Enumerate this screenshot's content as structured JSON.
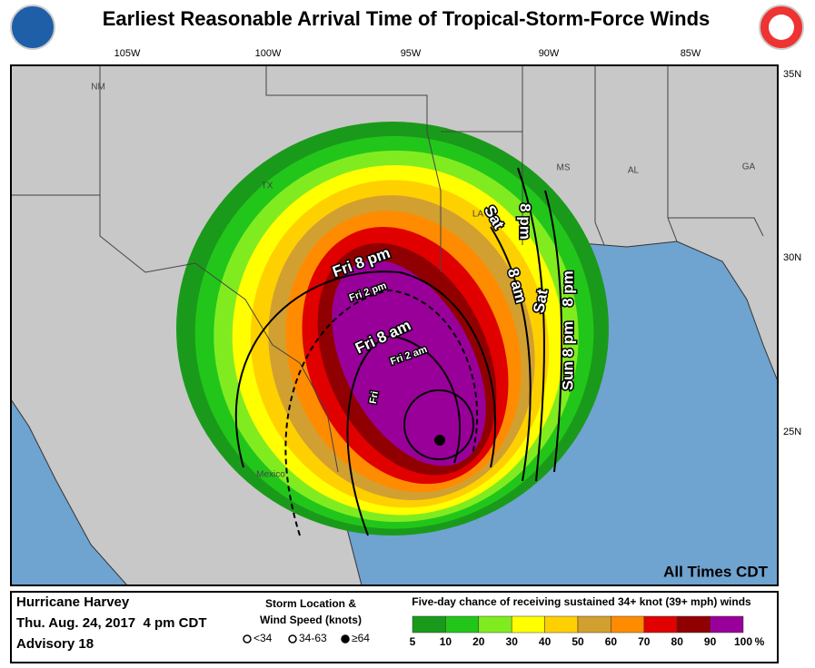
{
  "header": {
    "title": "Earliest Reasonable Arrival Time of Tropical-Storm-Force Winds"
  },
  "map": {
    "lon_labels": [
      "105W",
      "100W",
      "95W",
      "90W",
      "85W"
    ],
    "lat_labels": [
      "35N",
      "30N",
      "25N"
    ],
    "region_labels": [
      "NM",
      "TX",
      "LA",
      "MS",
      "AL",
      "GA",
      "Mexico"
    ],
    "time_labels": [
      "Fri 8 pm",
      "Fri 2 pm",
      "Fri 8 am",
      "Fri 2 am",
      "Fri",
      "Sat",
      "8 pm",
      "8 am",
      "Sat",
      "8 pm",
      "Sun 8 pm"
    ],
    "note": "All Times CDT"
  },
  "footer": {
    "storm_name": "Hurricane Harvey",
    "issued": "Thu. Aug. 24, 2017  4 pm CDT",
    "advisory": "Advisory 18",
    "storm_legend_title": "Storm Location &",
    "storm_legend_subtitle": "Wind Speed (knots)",
    "storm_legend_items": [
      "<34",
      "34-63",
      "≥64"
    ],
    "scale_title": "Five-day chance of receiving sustained 34+ knot (39+ mph) winds",
    "scale_ticks": [
      5,
      10,
      20,
      30,
      40,
      50,
      60,
      70,
      80,
      90,
      100
    ],
    "scale_unit": "%",
    "scale_colors": [
      "#1a9a1a",
      "#22c61a",
      "#80ec20",
      "#ffff00",
      "#ffd000",
      "#d2a030",
      "#ff8c00",
      "#e00000",
      "#900000",
      "#99009a"
    ]
  }
}
